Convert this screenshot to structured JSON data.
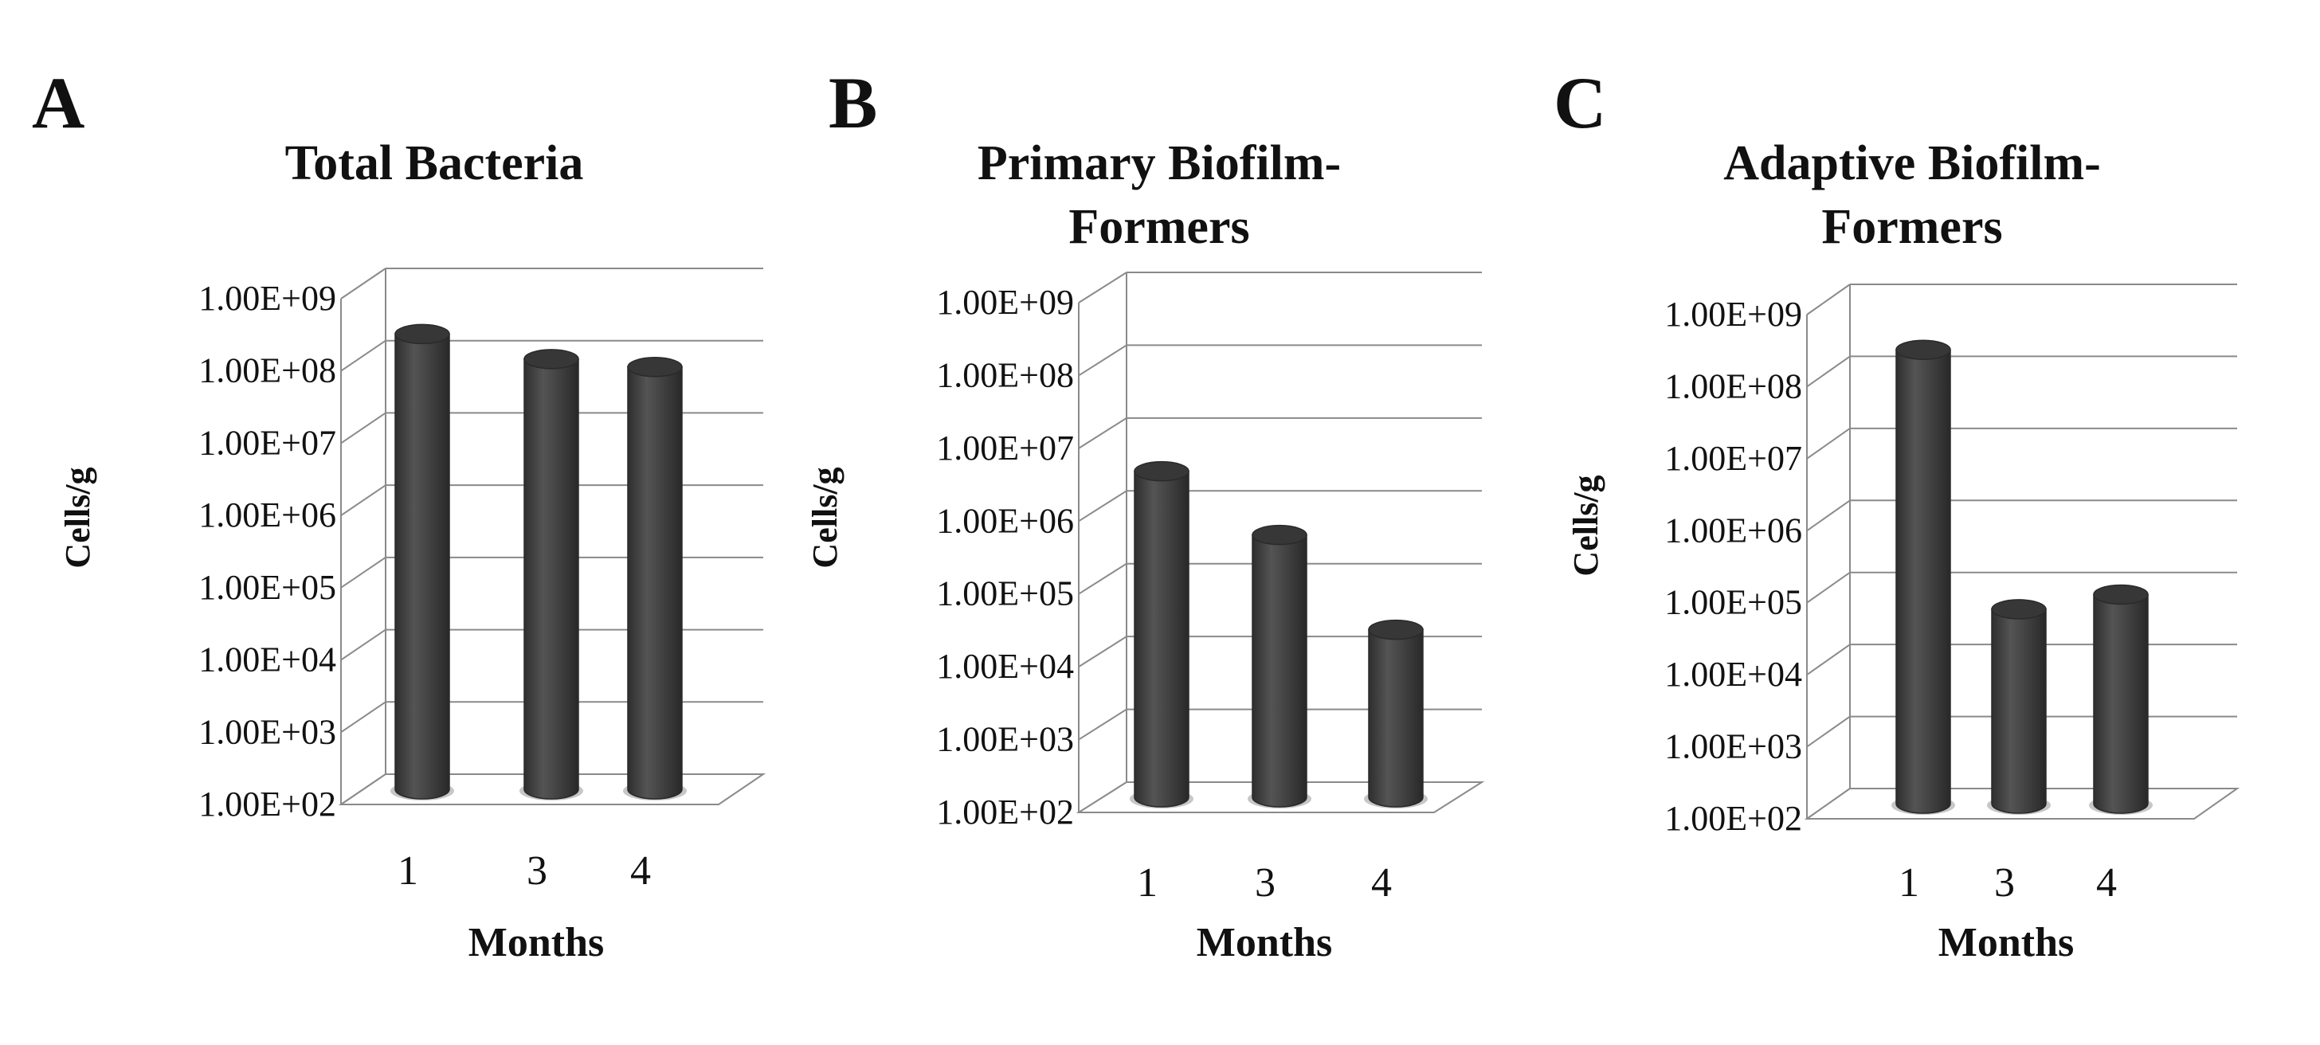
{
  "figure": {
    "panels": [
      "A",
      "B",
      "C"
    ]
  },
  "chart_data": [
    {
      "type": "bar",
      "panel": "A",
      "title": "Total Bacteria",
      "xlabel": "Months",
      "ylabel": "Cells/g",
      "scale": "log",
      "ylim": [
        100,
        1000000000
      ],
      "grid": true,
      "yticks": [
        "1.00E+02",
        "1.00E+03",
        "1.00E+04",
        "1.00E+05",
        "1.00E+06",
        "1.00E+07",
        "1.00E+08",
        "1.00E+09"
      ],
      "categories": [
        "1",
        "3",
        "4"
      ],
      "values": [
        200000000,
        90000000,
        70000000
      ],
      "bar_color": "#3d3d3d"
    },
    {
      "type": "bar",
      "panel": "B",
      "title": "Primary Biofilm-Formers",
      "xlabel": "Months",
      "ylabel": "Cells/g",
      "scale": "log",
      "ylim": [
        100,
        1000000000
      ],
      "grid": true,
      "yticks": [
        "1.00E+02",
        "1.00E+03",
        "1.00E+04",
        "1.00E+05",
        "1.00E+06",
        "1.00E+07",
        "1.00E+08",
        "1.00E+09"
      ],
      "categories": [
        "1",
        "3",
        "4"
      ],
      "values": [
        3000000,
        400000,
        20000
      ],
      "bar_color": "#3d3d3d"
    },
    {
      "type": "bar",
      "panel": "C",
      "title": "Adaptive Biofilm-Formers",
      "xlabel": "Months",
      "ylabel": "Cells/g",
      "scale": "log",
      "ylim": [
        100,
        1000000000
      ],
      "grid": true,
      "yticks": [
        "1.00E+02",
        "1.00E+03",
        "1.00E+04",
        "1.00E+05",
        "1.00E+06",
        "1.00E+07",
        "1.00E+08",
        "1.00E+09"
      ],
      "categories": [
        "1",
        "3",
        "4"
      ],
      "values": [
        200000000,
        50000,
        80000
      ],
      "bar_color": "#3d3d3d"
    }
  ]
}
